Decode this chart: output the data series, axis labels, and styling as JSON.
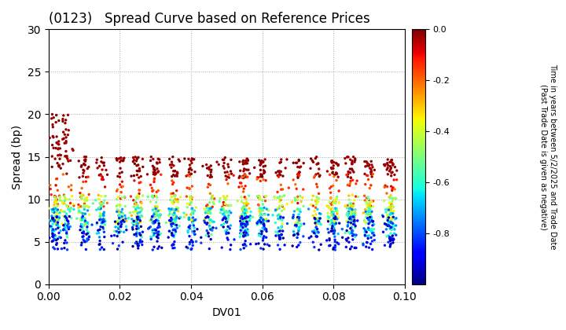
{
  "title": "(0123)   Spread Curve based on Reference Prices",
  "xlabel": "DV01",
  "ylabel": "Spread (bp)",
  "xlim": [
    0.0,
    0.1
  ],
  "ylim": [
    0,
    30
  ],
  "xticks": [
    0.0,
    0.02,
    0.04,
    0.06,
    0.08,
    0.1
  ],
  "yticks": [
    0,
    5,
    10,
    15,
    20,
    25,
    30
  ],
  "colorbar_label_line1": "Time in years between 5/2/2025 and Trade Date",
  "colorbar_label_line2": "(Past Trade Date is given as negative)",
  "cmap": "jet",
  "vmin": -1.0,
  "vmax": 0.0,
  "marker_size": 6,
  "background_color": "#ffffff",
  "grid_color": "#aaaaaa",
  "grid_style": "dotted",
  "figsize": [
    7.2,
    4.2
  ],
  "dpi": 100
}
